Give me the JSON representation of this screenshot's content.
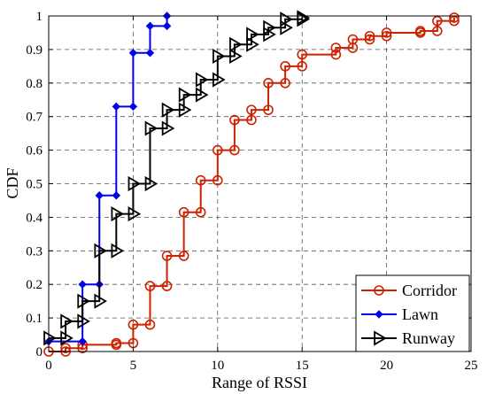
{
  "chart_data": {
    "type": "line",
    "style": "step-cdf",
    "xlabel": "Range of RSSI",
    "ylabel": "CDF",
    "xlim": [
      0,
      25
    ],
    "ylim": [
      0,
      1
    ],
    "xticks": [
      "0",
      "5",
      "10",
      "15",
      "20",
      "25"
    ],
    "yticks": [
      "0",
      "0.1",
      "0.2",
      "0.3",
      "0.4",
      "0.5",
      "0.6",
      "0.7",
      "0.8",
      "0.9",
      "1"
    ],
    "grid": "dashed",
    "legend_position": "bottom-right",
    "series": [
      {
        "name": "Corridor",
        "color": "#cc2200",
        "marker": "circle",
        "x": [
          0,
          1,
          2,
          4,
          5,
          6,
          7,
          8,
          9,
          10,
          11,
          12,
          13,
          14,
          15,
          17,
          18,
          19,
          20,
          22,
          23,
          24
        ],
        "y": [
          0,
          0.01,
          0.02,
          0.025,
          0.08,
          0.195,
          0.285,
          0.415,
          0.51,
          0.6,
          0.69,
          0.72,
          0.8,
          0.85,
          0.885,
          0.905,
          0.93,
          0.94,
          0.95,
          0.955,
          0.985,
          0.995
        ]
      },
      {
        "name": "Lawn",
        "color": "#0000ee",
        "marker": "diamond",
        "x": [
          0,
          2,
          3,
          4,
          5,
          6,
          7
        ],
        "y": [
          0.03,
          0.2,
          0.465,
          0.73,
          0.89,
          0.97,
          1.0
        ]
      },
      {
        "name": "Runway",
        "color": "#000000",
        "marker": "triangle-right",
        "x": [
          0,
          1,
          2,
          3,
          4,
          5,
          6,
          7,
          8,
          9,
          10,
          11,
          12,
          13,
          14,
          15
        ],
        "y": [
          0.04,
          0.09,
          0.15,
          0.3,
          0.41,
          0.5,
          0.665,
          0.72,
          0.765,
          0.81,
          0.88,
          0.915,
          0.945,
          0.965,
          0.99,
          0.995
        ]
      }
    ]
  }
}
